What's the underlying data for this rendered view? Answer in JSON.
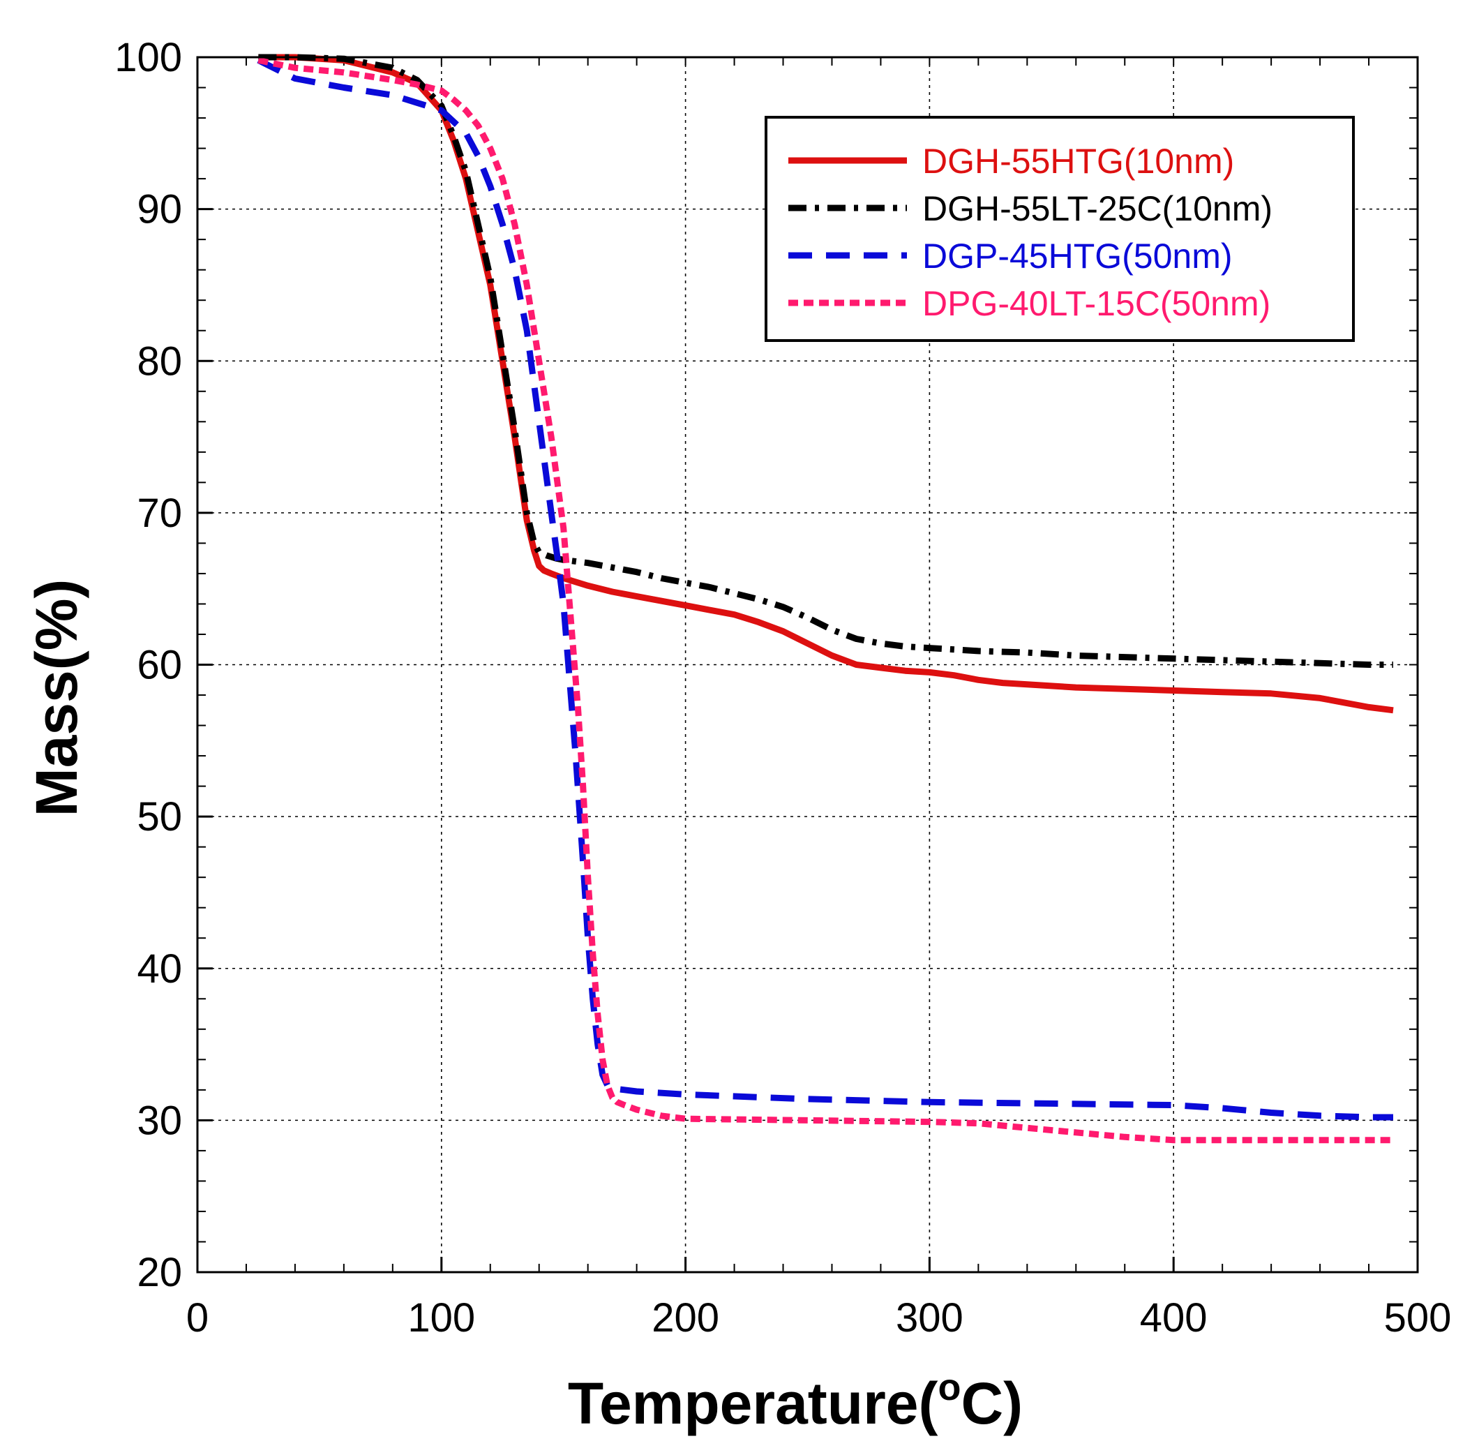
{
  "chart_data": {
    "type": "line",
    "title": "",
    "xlabel": "Temperature",
    "xlabel_unit_open": "(",
    "xlabel_unit_sup": "o",
    "xlabel_unit_rest": "C)",
    "ylabel": "Mass(%)",
    "xlim": [
      0,
      500
    ],
    "ylim": [
      20,
      100
    ],
    "xticks": [
      0,
      100,
      200,
      300,
      400,
      500
    ],
    "yticks": [
      20,
      30,
      40,
      50,
      60,
      70,
      80,
      90,
      100
    ],
    "x_minor_step": 20,
    "y_minor_step": 2,
    "grid": true,
    "legend_position": "top-right",
    "series": [
      {
        "name": "DGH-55HTG(10nm)",
        "color": "#dd1010",
        "style": "solid",
        "x": [
          25,
          40,
          60,
          80,
          90,
          100,
          105,
          110,
          115,
          120,
          125,
          130,
          135,
          138,
          140,
          142,
          145,
          150,
          160,
          170,
          180,
          200,
          210,
          220,
          230,
          240,
          250,
          260,
          270,
          280,
          290,
          300,
          310,
          320,
          330,
          340,
          360,
          380,
          400,
          420,
          440,
          460,
          470,
          480,
          490
        ],
        "y": [
          100,
          100,
          99.8,
          99,
          98.3,
          96.5,
          94.5,
          92,
          88.5,
          85,
          80,
          75,
          69.5,
          67.5,
          66.5,
          66.2,
          66,
          65.7,
          65.2,
          64.8,
          64.5,
          63.9,
          63.6,
          63.3,
          62.8,
          62.2,
          61.4,
          60.6,
          60,
          59.8,
          59.6,
          59.5,
          59.3,
          59,
          58.8,
          58.7,
          58.5,
          58.4,
          58.3,
          58.2,
          58.1,
          57.8,
          57.5,
          57.2,
          57
        ]
      },
      {
        "name": "DGH-55LT-25C(10nm)",
        "color": "#000000",
        "style": "dashdot",
        "x": [
          25,
          40,
          60,
          80,
          90,
          100,
          105,
          110,
          115,
          120,
          125,
          130,
          135,
          138,
          140,
          143,
          147,
          150,
          160,
          170,
          180,
          190,
          200,
          210,
          220,
          230,
          240,
          250,
          260,
          270,
          280,
          290,
          300,
          320,
          340,
          360,
          380,
          400,
          420,
          440,
          460,
          480,
          490
        ],
        "y": [
          100,
          100,
          99.9,
          99.3,
          98.5,
          96.8,
          94.8,
          92.5,
          89,
          85.5,
          80.5,
          75.5,
          70,
          68,
          67.4,
          67.2,
          67,
          66.9,
          66.7,
          66.4,
          66.1,
          65.7,
          65.4,
          65.1,
          64.7,
          64.3,
          63.8,
          63.1,
          62.3,
          61.7,
          61.4,
          61.2,
          61.1,
          60.9,
          60.8,
          60.6,
          60.5,
          60.4,
          60.3,
          60.2,
          60.1,
          60,
          60
        ]
      },
      {
        "name": "DGP-45HTG(50nm)",
        "color": "#0a0ad8",
        "style": "dashed",
        "x": [
          25,
          40,
          60,
          80,
          90,
          100,
          110,
          115,
          120,
          125,
          130,
          135,
          140,
          145,
          148,
          150,
          152,
          155,
          158,
          160,
          162,
          164,
          166,
          168,
          170,
          175,
          180,
          200,
          250,
          300,
          350,
          400,
          420,
          440,
          460,
          480,
          490
        ],
        "y": [
          99.8,
          98.6,
          98,
          97.5,
          97,
          96.5,
          95,
          93.5,
          91.5,
          89,
          86,
          82,
          76,
          70,
          66.5,
          64,
          60,
          54,
          47,
          42,
          38,
          35,
          33,
          32.3,
          32.1,
          32,
          31.9,
          31.7,
          31.4,
          31.2,
          31.1,
          31,
          30.8,
          30.5,
          30.3,
          30.2,
          30.2
        ]
      },
      {
        "name": "DPG-40LT-15C(50nm)",
        "color": "#ff1a6e",
        "style": "dotted",
        "x": [
          25,
          40,
          60,
          80,
          90,
          100,
          105,
          110,
          115,
          120,
          125,
          130,
          135,
          140,
          145,
          150,
          153,
          156,
          158,
          160,
          162,
          164,
          166,
          168,
          170,
          172,
          175,
          180,
          190,
          200,
          250,
          300,
          320,
          340,
          360,
          380,
          400,
          420,
          440,
          460,
          480,
          490
        ],
        "y": [
          99.8,
          99.3,
          99,
          98.5,
          98.2,
          97.8,
          97.2,
          96.5,
          95.5,
          94,
          92,
          89,
          85,
          80,
          75,
          69,
          63,
          57,
          52,
          46,
          41,
          37,
          34,
          32.3,
          31.5,
          31.2,
          31,
          30.7,
          30.3,
          30.1,
          30,
          29.9,
          29.8,
          29.5,
          29.2,
          28.9,
          28.7,
          28.7,
          28.7,
          28.7,
          28.7,
          28.7
        ]
      }
    ]
  }
}
